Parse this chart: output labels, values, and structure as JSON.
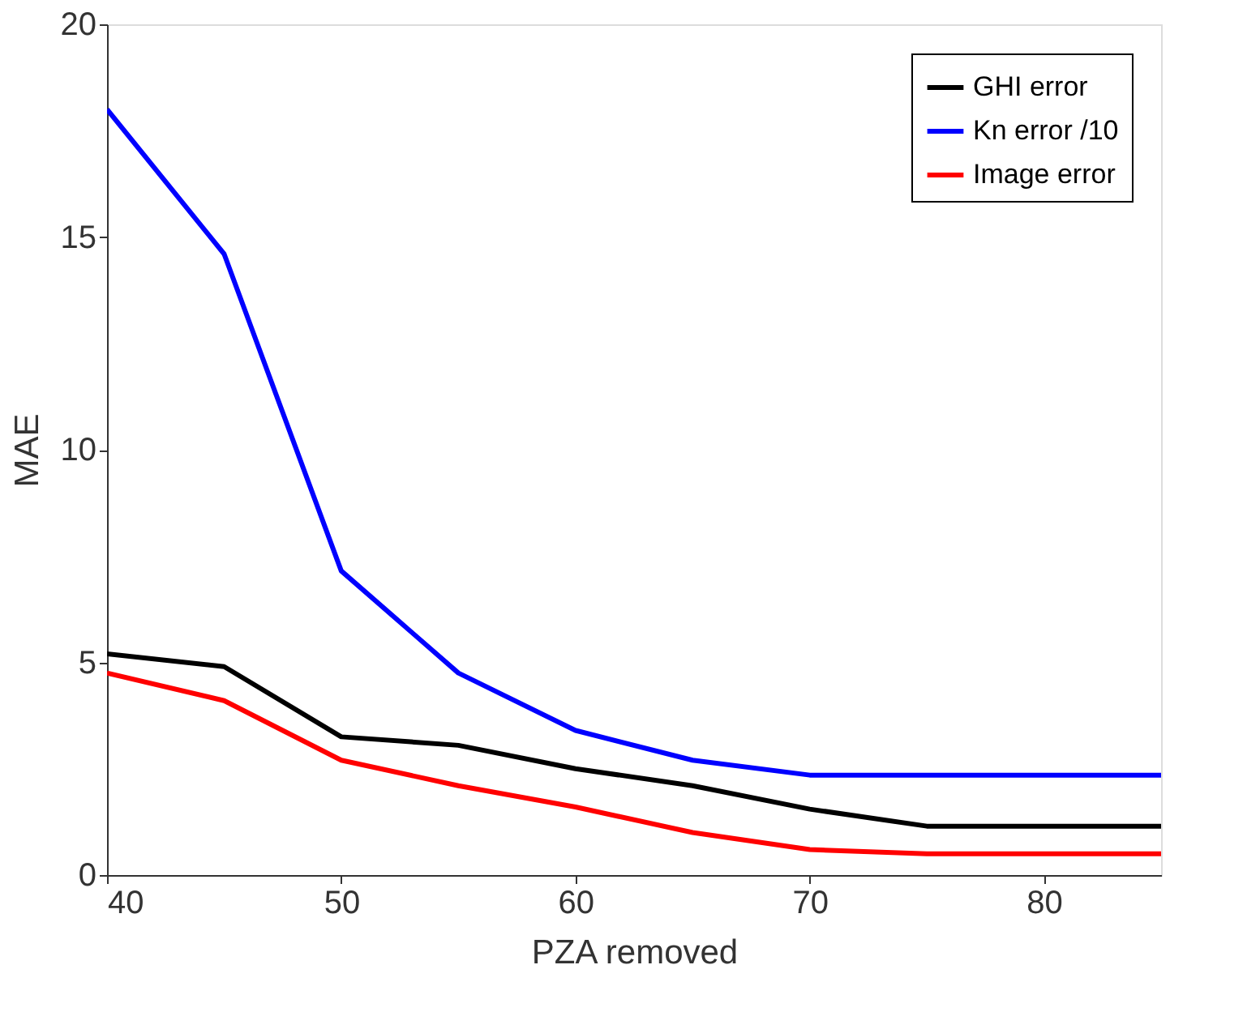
{
  "chart_data": {
    "type": "line",
    "xlabel": "PZA removed",
    "ylabel": "MAE",
    "x": [
      40,
      45,
      50,
      55,
      60,
      65,
      70,
      75,
      80,
      85
    ],
    "series": [
      {
        "name": "GHI error",
        "color": "#000000",
        "values": [
          5.2,
          4.9,
          3.25,
          3.05,
          2.5,
          2.1,
          1.55,
          1.15,
          1.15,
          1.15
        ]
      },
      {
        "name": "Kn error /10",
        "color": "#0000ff",
        "values": [
          18.0,
          14.6,
          7.15,
          4.75,
          3.4,
          2.7,
          2.35,
          2.35,
          2.35,
          2.35
        ]
      },
      {
        "name": "Image error",
        "color": "#ff0000",
        "values": [
          4.75,
          4.1,
          2.7,
          2.1,
          1.6,
          1.0,
          0.6,
          0.5,
          0.5,
          0.5
        ]
      }
    ],
    "xlim": [
      40,
      85
    ],
    "xticks": [
      40,
      50,
      60,
      70,
      80
    ],
    "ylim": [
      0,
      20
    ],
    "yticks": [
      0,
      5,
      10,
      15,
      20
    ],
    "grid": false,
    "legend": "top right",
    "marker": "none",
    "line_style": "solid"
  }
}
